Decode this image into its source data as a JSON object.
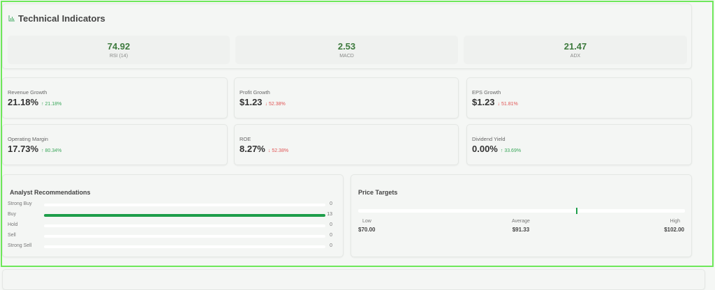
{
  "technical": {
    "title": "Technical Indicators",
    "icon": "bar-chart-icon",
    "indicators": [
      {
        "value": "74.92",
        "label": "RSI (14)"
      },
      {
        "value": "2.53",
        "label": "MACD"
      },
      {
        "value": "21.47",
        "label": "ADX"
      }
    ]
  },
  "metrics": [
    {
      "label": "Revenue Growth",
      "value": "21.18%",
      "change": "↑ 21.18%",
      "direction": "up"
    },
    {
      "label": "Profit Growth",
      "value": "$1.23",
      "change": "↓ 52.38%",
      "direction": "down"
    },
    {
      "label": "EPS Growth",
      "value": "$1.23",
      "change": "↓ 51.81%",
      "direction": "down"
    },
    {
      "label": "Operating Margin",
      "value": "17.73%",
      "change": "↑ 80.34%",
      "direction": "up"
    },
    {
      "label": "ROE",
      "value": "8.27%",
      "change": "↓ 52.38%",
      "direction": "down"
    },
    {
      "label": "Dividend Yield",
      "value": "0.00%",
      "change": "↑ 33.69%",
      "direction": "up"
    }
  ],
  "analyst": {
    "title": "Analyst Recommendations",
    "rows": [
      {
        "label": "Strong Buy",
        "count": "0",
        "fraction": 0
      },
      {
        "label": "Buy",
        "count": "13",
        "fraction": 1
      },
      {
        "label": "Hold",
        "count": "0",
        "fraction": 0
      },
      {
        "label": "Sell",
        "count": "0",
        "fraction": 0
      },
      {
        "label": "Strong Sell",
        "count": "0",
        "fraction": 0
      }
    ]
  },
  "price_targets": {
    "title": "Price Targets",
    "low_label": "Low",
    "low": "$70.00",
    "avg_label": "Average",
    "avg": "$91.33",
    "high_label": "High",
    "high": "$102.00",
    "low_value": 70,
    "avg_value": 91.33,
    "high_value": 102
  },
  "colors": {
    "accent": "#1e9e4a",
    "up": "#3aa75a",
    "down": "#e05555",
    "value": "#3d7a3d"
  }
}
